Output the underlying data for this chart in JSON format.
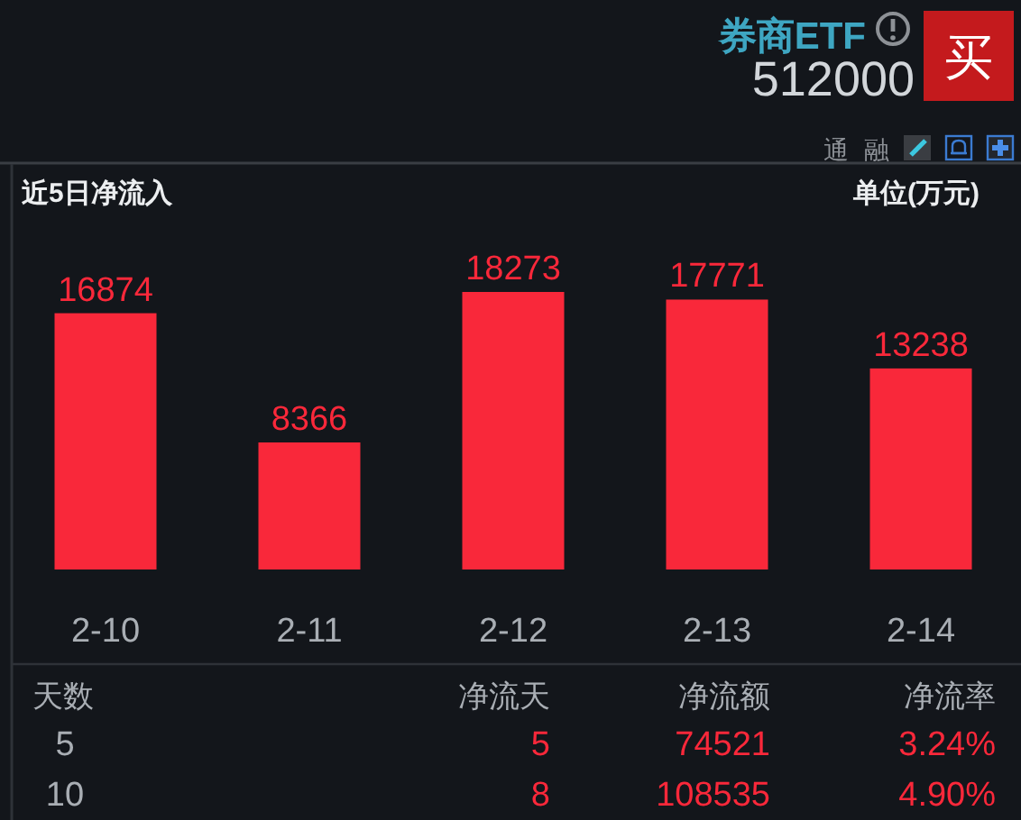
{
  "chart_data": {
    "type": "bar",
    "title": "近5日净流入",
    "ylabel": "单位(万元)",
    "categories": [
      "2-10",
      "2-11",
      "2-12",
      "2-13",
      "2-14"
    ],
    "values": [
      16874,
      8366,
      18273,
      17771,
      13238
    ],
    "color": "#f9283a",
    "data_labels": true,
    "annotations": [
      "券商ETF",
      "512000",
      "买",
      "通",
      "融",
      "天数",
      "净流天",
      "净流额",
      "净流率",
      "5",
      "5",
      "74521",
      "3.24%",
      "10",
      "8",
      "108535",
      "4.90%"
    ]
  }
}
